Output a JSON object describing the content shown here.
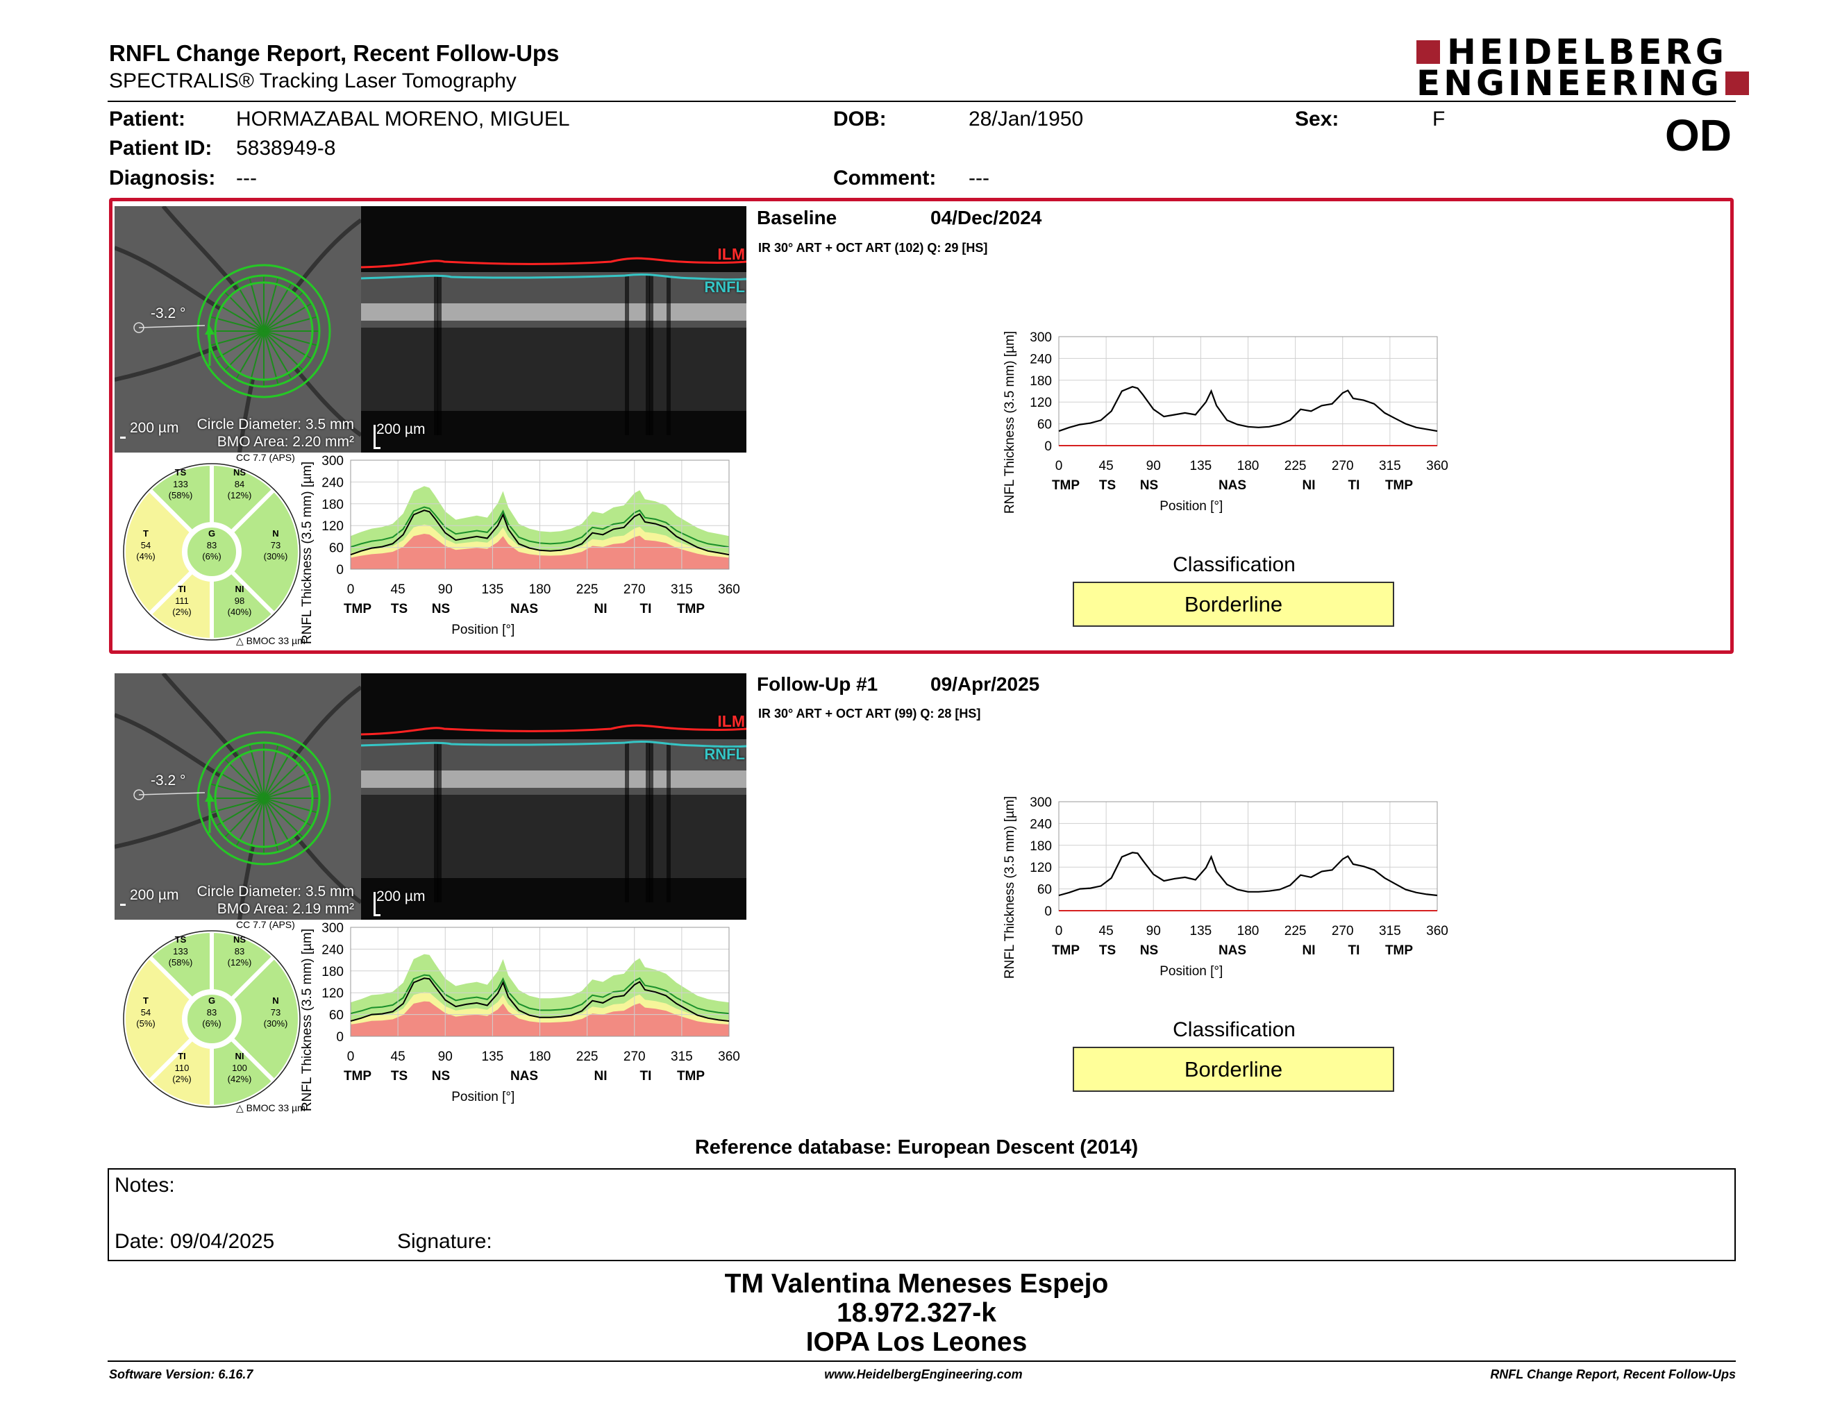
{
  "header": {
    "report_title": "RNFL Change Report, Recent Follow-Ups",
    "subtitle": "SPECTRALIS® Tracking Laser Tomography",
    "brand_line1": "HEIDELBERG",
    "brand_line2": "ENGINEERING",
    "eye": "OD"
  },
  "patient": {
    "patient_label": "Patient:",
    "patient_value": "HORMAZABAL MORENO, MIGUEL",
    "id_label": "Patient ID:",
    "id_value": "5838949-8",
    "diagnosis_label": "Diagnosis:",
    "diagnosis_value": "---",
    "dob_label": "DOB:",
    "dob_value": "28/Jan/1950",
    "comment_label": "Comment:",
    "comment_value": "---",
    "sex_label": "Sex:",
    "sex_value": "F"
  },
  "colors": {
    "accent_red": "#c8102e",
    "brand_red": "#a4202f",
    "classification_bg": "#ffff99",
    "normal_green": "#b5e88a",
    "borderline_yellow": "#f6f59a",
    "outside_red": "#f28b82"
  },
  "sections": [
    {
      "name": "Baseline",
      "date": "04/Dec/2024",
      "scan_info": "IR 30° ART + OCT ART (102) Q: 29 [HS]",
      "fundus_angle": "-3.2 °",
      "scale_label": "200 µm",
      "circle_diameter": "Circle Diameter: 3.5 mm",
      "bmo_area": "BMO Area: 2.20 mm²",
      "bscan_scale": "200 µm",
      "ilm_label": "ILM",
      "rnfl_label": "RNFL",
      "cc_label": "CC 7.7 (APS)",
      "bmoc_label": "BMOC 33 µm",
      "sectors": {
        "TS": {
          "name": "TS",
          "value": "133",
          "pct": "(58%)"
        },
        "NS": {
          "name": "NS",
          "value": "84",
          "pct": "(12%)"
        },
        "T": {
          "name": "T",
          "value": "54",
          "pct": "(4%)"
        },
        "G": {
          "name": "G",
          "value": "83",
          "pct": "(6%)"
        },
        "N": {
          "name": "N",
          "value": "73",
          "pct": "(30%)"
        },
        "TI": {
          "name": "TI",
          "value": "111",
          "pct": "(2%)"
        },
        "NI": {
          "name": "NI",
          "value": "98",
          "pct": "(40%)"
        }
      },
      "classification_title": "Classification",
      "classification": "Borderline"
    },
    {
      "name": "Follow-Up #1",
      "date": "09/Apr/2025",
      "scan_info": "IR 30° ART + OCT ART (99) Q: 28 [HS]",
      "fundus_angle": "-3.2 °",
      "scale_label": "200 µm",
      "circle_diameter": "Circle Diameter: 3.5 mm",
      "bmo_area": "BMO Area: 2.19 mm²",
      "bscan_scale": "200 µm",
      "ilm_label": "ILM",
      "rnfl_label": "RNFL",
      "cc_label": "CC 7.7 (APS)",
      "bmoc_label": "BMOC 33 µm",
      "sectors": {
        "TS": {
          "name": "TS",
          "value": "133",
          "pct": "(58%)"
        },
        "NS": {
          "name": "NS",
          "value": "83",
          "pct": "(12%)"
        },
        "T": {
          "name": "T",
          "value": "54",
          "pct": "(5%)"
        },
        "G": {
          "name": "G",
          "value": "83",
          "pct": "(6%)"
        },
        "N": {
          "name": "N",
          "value": "73",
          "pct": "(30%)"
        },
        "TI": {
          "name": "TI",
          "value": "110",
          "pct": "(2%)"
        },
        "NI": {
          "name": "NI",
          "value": "100",
          "pct": "(42%)"
        }
      },
      "classification_title": "Classification",
      "classification": "Borderline"
    }
  ],
  "reference_db": "Reference database: European Descent (2014)",
  "notes": {
    "notes_label": "Notes:",
    "date_label": "Date: 09/04/2025",
    "signature_label": "Signature:"
  },
  "signoff": {
    "line1": "TM Valentina Meneses Espejo",
    "line2": "18.972.327-k",
    "line3": "IOPA Los Leones"
  },
  "footer": {
    "left": "Software Version: 6.16.7",
    "center": "www.HeidelbergEngineering.com",
    "right": "RNFL Change Report, Recent Follow-Ups"
  },
  "chart_data": [
    {
      "type": "line",
      "title": "",
      "ylabel": "RNFL Thickness (3.5 mm) [µm]",
      "xlabel": "Position [°]",
      "ylim": [
        0,
        300
      ],
      "xlim": [
        0,
        360
      ],
      "yticks": [
        "0",
        "60",
        "120",
        "180",
        "240",
        "300"
      ],
      "xticks": [
        "0",
        "45",
        "90",
        "135",
        "180",
        "225",
        "270",
        "315",
        "360"
      ],
      "region_labels": [
        "TMP",
        "TS",
        "NS",
        "NAS",
        "NI",
        "TI",
        "TMP"
      ],
      "series": [
        {
          "x": [
            0,
            10,
            20,
            30,
            40,
            50,
            60,
            70,
            75,
            80,
            90,
            100,
            110,
            120,
            130,
            140,
            145,
            150,
            160,
            170,
            180,
            190,
            200,
            210,
            220,
            230,
            240,
            250,
            260,
            270,
            275,
            280,
            290,
            300,
            310,
            320,
            330,
            340,
            350,
            360
          ],
          "values": [
            40,
            50,
            58,
            62,
            70,
            95,
            150,
            162,
            158,
            140,
            100,
            80,
            85,
            90,
            85,
            120,
            150,
            110,
            70,
            58,
            52,
            50,
            52,
            58,
            70,
            100,
            95,
            110,
            115,
            145,
            152,
            130,
            125,
            115,
            90,
            75,
            60,
            50,
            45,
            40
          ]
        }
      ]
    },
    {
      "type": "line",
      "title": "",
      "ylabel": "RNFL Thickness (3.5 mm) [µm]",
      "xlabel": "Position [°]",
      "ylim": [
        0,
        300
      ],
      "xlim": [
        0,
        360
      ],
      "yticks": [
        "0",
        "60",
        "120",
        "180",
        "240",
        "300"
      ],
      "xticks": [
        "0",
        "45",
        "90",
        "135",
        "180",
        "225",
        "270",
        "315",
        "360"
      ],
      "region_labels": [
        "TMP",
        "TS",
        "NS",
        "NAS",
        "NI",
        "TI",
        "TMP"
      ],
      "series": [
        {
          "x": [
            0,
            10,
            20,
            30,
            40,
            50,
            60,
            70,
            75,
            80,
            90,
            100,
            110,
            120,
            130,
            140,
            145,
            150,
            160,
            170,
            180,
            190,
            200,
            210,
            220,
            230,
            240,
            250,
            260,
            270,
            275,
            280,
            290,
            300,
            310,
            320,
            330,
            340,
            350,
            360
          ],
          "values": [
            42,
            50,
            60,
            62,
            68,
            90,
            148,
            160,
            158,
            138,
            100,
            82,
            88,
            92,
            85,
            118,
            148,
            108,
            72,
            58,
            52,
            52,
            54,
            58,
            70,
            98,
            92,
            108,
            112,
            142,
            150,
            128,
            122,
            112,
            90,
            74,
            58,
            50,
            45,
            42
          ]
        }
      ]
    }
  ]
}
